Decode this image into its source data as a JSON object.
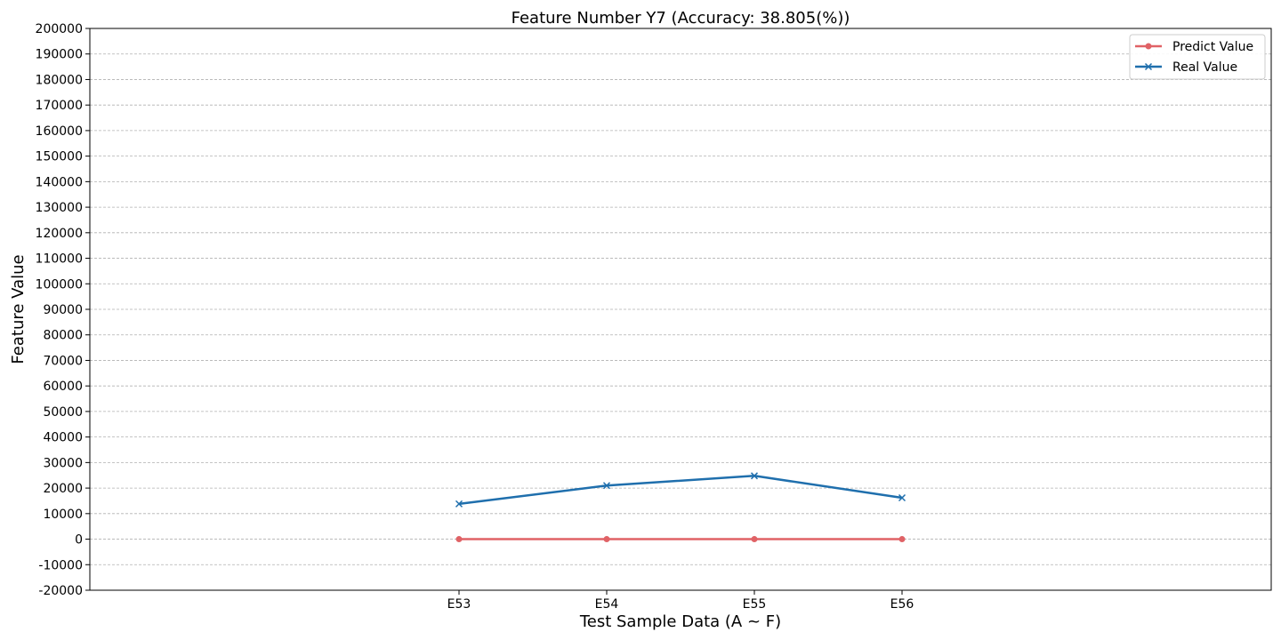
{
  "chart_data": {
    "type": "line",
    "title": "Feature Number Y7 (Accuracy: 38.805(%))",
    "xlabel": "Test Sample Data (A ~ F)",
    "ylabel": "Feature Value",
    "categories": [
      "E53",
      "E54",
      "E55",
      "E56"
    ],
    "ylim": [
      -20000,
      200000
    ],
    "yticks": [
      -20000,
      -10000,
      0,
      10000,
      20000,
      30000,
      40000,
      50000,
      60000,
      70000,
      80000,
      90000,
      100000,
      110000,
      120000,
      130000,
      140000,
      150000,
      160000,
      170000,
      180000,
      190000,
      200000
    ],
    "grid": true,
    "legend_position": "top-right",
    "series": [
      {
        "name": "Predict Value",
        "color": "#e06266",
        "marker": "circle",
        "values": [
          0,
          0,
          0,
          0
        ]
      },
      {
        "name": "Real Value",
        "color": "#1f6fad",
        "marker": "x",
        "values": [
          13800,
          21000,
          24800,
          16200
        ]
      }
    ]
  }
}
